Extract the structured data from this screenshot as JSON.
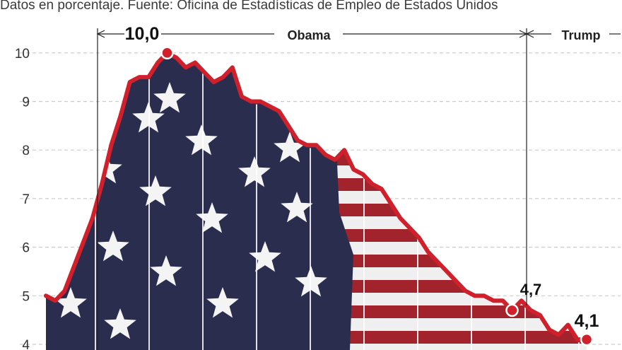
{
  "subtitle": "Datos en porcentaje. Fuente: Oficina de Estadísticas de Empleo de Estados Unidos",
  "colors": {
    "line": "#d0202c",
    "grid": "#cccccc",
    "navy": "#2a2d4e",
    "stripe_red": "#a3232c"
  },
  "chart_data": {
    "type": "line",
    "title": "",
    "xlabel": "",
    "ylabel": "",
    "ylim": [
      4,
      10.3
    ],
    "yticks": [
      "10",
      "9",
      "8",
      "7",
      "6",
      "5",
      "4"
    ],
    "grid": true,
    "series": [
      {
        "values": [
          5.0,
          4.9,
          5.1,
          5.6,
          6.1,
          6.6,
          7.3,
          8.1,
          8.7,
          9.4,
          9.5,
          9.5,
          9.8,
          10.0,
          9.9,
          9.7,
          9.8,
          9.6,
          9.4,
          9.5,
          9.7,
          9.1,
          9.0,
          9.0,
          8.9,
          8.8,
          8.5,
          8.2,
          8.1,
          8.1,
          7.9,
          7.8,
          8.0,
          7.6,
          7.5,
          7.3,
          7.2,
          6.9,
          6.6,
          6.4,
          6.2,
          5.9,
          5.7,
          5.5,
          5.3,
          5.1,
          5.0,
          5.0,
          4.9,
          4.9,
          4.7,
          4.9,
          4.7,
          4.6,
          4.3,
          4.2,
          4.4,
          4.1,
          4.1
        ]
      }
    ],
    "annotations": [
      {
        "label": "10,0",
        "value": 10.0
      },
      {
        "label": "4,7",
        "value": 4.7
      },
      {
        "label": "4,1",
        "value": 4.1
      }
    ],
    "periods": [
      {
        "label": "Obama"
      },
      {
        "label": "Trump"
      }
    ]
  }
}
